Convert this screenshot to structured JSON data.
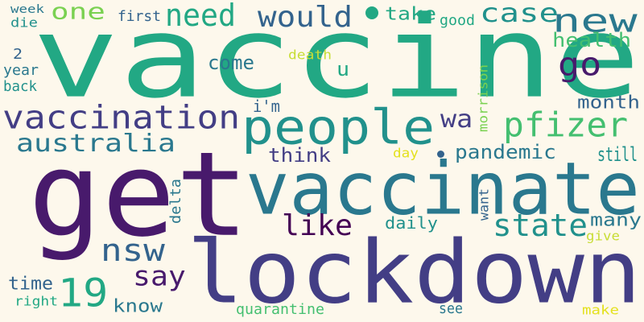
{
  "palette": {
    "background": "#fdf8ec",
    "dark_purple": "#481a6c",
    "indigo": "#433e85",
    "blue": "#33638d",
    "steel": "#2a788e",
    "teal": "#21918c",
    "sea_green": "#22a884",
    "green": "#44bf70",
    "lime": "#7ad151",
    "yellow": "#c8dd36",
    "bright_yellow": "#e4e11f",
    "deep_purple": "#440154"
  },
  "words": [
    {
      "text": "vaccine",
      "color": "#22a884"
    },
    {
      "text": "get",
      "color": "#481a6c"
    },
    {
      "text": "vaccinate",
      "color": "#2a788e"
    },
    {
      "text": "lockdown",
      "color": "#433e85"
    },
    {
      "text": "people",
      "color": "#21918c"
    },
    {
      "text": "vaccination",
      "color": "#433e85"
    },
    {
      "text": "new",
      "color": "#2a788e"
    },
    {
      "text": "pfizer",
      "color": "#44bf70"
    },
    {
      "text": "would",
      "color": "#33638d"
    },
    {
      "text": "need",
      "color": "#22a884"
    },
    {
      "text": "one",
      "color": "#7ad151"
    },
    {
      "text": "case",
      "color": "#21918c"
    },
    {
      "text": "australia",
      "color": "#2a788e"
    },
    {
      "text": "go",
      "color": "#481a6c"
    },
    {
      "text": "state",
      "color": "#21918c"
    },
    {
      "text": "nsw",
      "color": "#33638d"
    },
    {
      "text": "19",
      "color": "#22a884"
    },
    {
      "text": "like",
      "color": "#440154"
    },
    {
      "text": "say",
      "color": "#481a6c"
    },
    {
      "text": "wa",
      "color": "#433e85"
    },
    {
      "text": "take",
      "color": "#22a884"
    },
    {
      "text": "health",
      "color": "#44bf70"
    },
    {
      "text": "month",
      "color": "#33638d"
    },
    {
      "text": "still",
      "color": "#21918c"
    },
    {
      "text": "pandemic",
      "color": "#2a788e"
    },
    {
      "text": "many",
      "color": "#2a788e"
    },
    {
      "text": "come",
      "color": "#2a788e"
    },
    {
      "text": "think",
      "color": "#433e85"
    },
    {
      "text": "daily",
      "color": "#21918c"
    },
    {
      "text": "time",
      "color": "#33638d"
    },
    {
      "text": "know",
      "color": "#2a788e"
    },
    {
      "text": "u",
      "color": "#22a884"
    },
    {
      "text": "i'm",
      "color": "#33638d"
    },
    {
      "text": "first",
      "color": "#33638d"
    },
    {
      "text": "good",
      "color": "#22a884"
    },
    {
      "text": "week",
      "color": "#2a788e"
    },
    {
      "text": "die",
      "color": "#21918c"
    },
    {
      "text": "2",
      "color": "#33638d"
    },
    {
      "text": "year",
      "color": "#2a788e"
    },
    {
      "text": "back",
      "color": "#21918c"
    },
    {
      "text": "death",
      "color": "#c8dd36"
    },
    {
      "text": "morrison",
      "color": "#7ad151"
    },
    {
      "text": "day",
      "color": "#e4e11f"
    },
    {
      "text": "delta",
      "color": "#2a788e"
    },
    {
      "text": "want",
      "color": "#33638d"
    },
    {
      "text": "give",
      "color": "#c8dd36"
    },
    {
      "text": "right",
      "color": "#22a884"
    },
    {
      "text": "quarantine",
      "color": "#44bf70"
    },
    {
      "text": "see",
      "color": "#2a788e"
    },
    {
      "text": "make",
      "color": "#e4e11f"
    }
  ]
}
